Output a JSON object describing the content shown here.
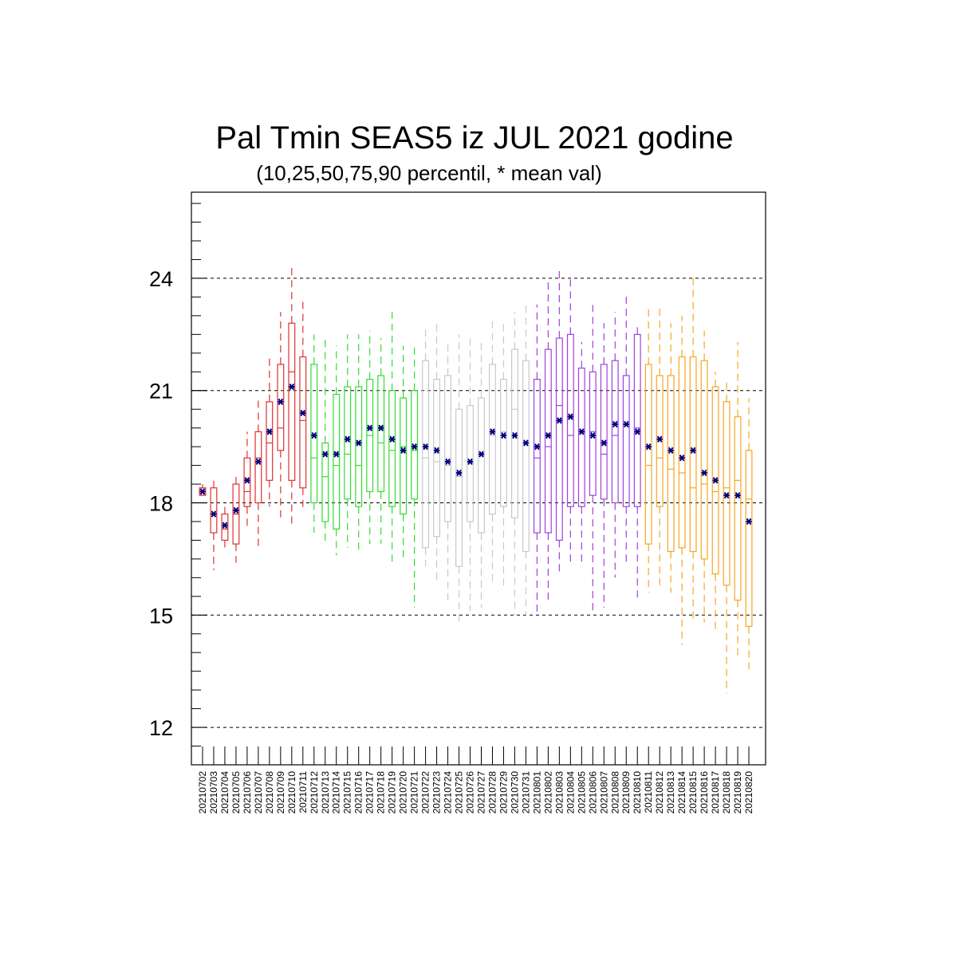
{
  "chart_data": {
    "type": "box",
    "title": "Pal Tmin SEAS5 iz JUL 2021 godine",
    "subtitle": "(10,25,50,75,90 percentil, * mean val)",
    "xlabel": "",
    "ylabel": "",
    "ylim": [
      11,
      26.3
    ],
    "yticks": [
      12,
      15,
      18,
      21,
      24
    ],
    "grid": "horizontal dashed at major y ticks",
    "mean_marker": "*",
    "colors": {
      "week1": "#e03030",
      "week2": "#33dd33",
      "week3": "#c8c8c8",
      "week4": "#a040e0",
      "week5": "#f5a623",
      "mean": "#000080"
    },
    "categories": [
      "20210702",
      "20210703",
      "20210704",
      "20210705",
      "20210706",
      "20210707",
      "20210708",
      "20210709",
      "20210710",
      "20210711",
      "20210712",
      "20210713",
      "20210714",
      "20210715",
      "20210716",
      "20210717",
      "20210718",
      "20210719",
      "20210720",
      "20210721",
      "20210722",
      "20210723",
      "20210724",
      "20210725",
      "20210726",
      "20210727",
      "20210728",
      "20210729",
      "20210730",
      "20210731",
      "20210801",
      "20210802",
      "20210803",
      "20210804",
      "20210805",
      "20210806",
      "20210807",
      "20210808",
      "20210809",
      "20210810",
      "20210811",
      "20210812",
      "20210813",
      "20210814",
      "20210815",
      "20210816",
      "20210817",
      "20210818",
      "20210819",
      "20210820"
    ],
    "groups": [
      "week1",
      "week1",
      "week1",
      "week1",
      "week1",
      "week1",
      "week1",
      "week1",
      "week1",
      "week1",
      "week2",
      "week2",
      "week2",
      "week2",
      "week2",
      "week2",
      "week2",
      "week2",
      "week2",
      "week2",
      "week3",
      "week3",
      "week3",
      "week3",
      "week3",
      "week3",
      "week3",
      "week3",
      "week3",
      "week3",
      "week4",
      "week4",
      "week4",
      "week4",
      "week4",
      "week4",
      "week4",
      "week4",
      "week4",
      "week4",
      "week5",
      "week5",
      "week5",
      "week5",
      "week5",
      "week5",
      "week5",
      "week5",
      "week5",
      "week5"
    ],
    "p10": [
      18.2,
      16.2,
      16.8,
      16.4,
      17.3,
      16.8,
      17.9,
      17.5,
      17.4,
      17.8,
      17.2,
      16.9,
      16.6,
      16.8,
      16.7,
      16.9,
      16.9,
      16.3,
      16.5,
      15.2,
      16.3,
      15.9,
      15.3,
      14.7,
      15.1,
      15.2,
      15.8,
      15.7,
      15.0,
      15.0,
      15.0,
      15.4,
      16.1,
      16.3,
      16.4,
      15.0,
      15.2,
      16.0,
      16.4,
      15.4,
      15.6,
      15.8,
      15.6,
      14.2,
      14.9,
      14.8,
      14.6,
      12.9,
      13.8,
      13.5
    ],
    "p25": [
      18.2,
      17.2,
      17.0,
      16.9,
      17.9,
      18.0,
      18.6,
      19.4,
      18.6,
      18.4,
      18.0,
      17.5,
      17.3,
      18.1,
      17.9,
      18.3,
      18.3,
      17.9,
      17.7,
      18.1,
      16.8,
      17.1,
      17.5,
      16.3,
      17.5,
      17.2,
      17.7,
      17.9,
      17.6,
      16.7,
      17.2,
      17.2,
      17.0,
      17.9,
      17.9,
      18.2,
      18.1,
      18.0,
      17.9,
      17.9,
      16.9,
      17.9,
      16.7,
      16.8,
      16.7,
      16.5,
      16.1,
      15.8,
      15.4,
      14.7
    ],
    "p50": [
      18.3,
      17.7,
      17.3,
      17.7,
      18.3,
      19.2,
      19.6,
      20.0,
      21.5,
      20.2,
      19.2,
      18.7,
      19.0,
      19.3,
      19.0,
      19.8,
      19.6,
      19.4,
      19.5,
      19.4,
      19.2,
      19.1,
      19.0,
      18.7,
      19.1,
      19.3,
      19.8,
      19.9,
      20.5,
      19.6,
      19.2,
      19.5,
      20.6,
      19.8,
      19.9,
      19.9,
      19.3,
      19.8,
      20.1,
      20.0,
      19.0,
      19.2,
      18.9,
      18.8,
      18.4,
      18.5,
      18.3,
      18.4,
      18.6,
      18.1
    ],
    "p75": [
      18.4,
      18.4,
      17.7,
      18.5,
      19.2,
      19.9,
      20.7,
      21.7,
      22.8,
      21.9,
      21.7,
      19.6,
      20.9,
      21.1,
      21.1,
      21.3,
      21.4,
      21.0,
      20.8,
      21.0,
      21.8,
      21.3,
      21.4,
      20.5,
      20.6,
      20.8,
      21.7,
      21.3,
      22.1,
      21.8,
      21.3,
      22.1,
      22.4,
      22.5,
      21.6,
      21.5,
      21.7,
      21.8,
      21.4,
      22.5,
      21.7,
      21.4,
      21.4,
      21.9,
      21.9,
      21.8,
      21.1,
      20.7,
      20.3,
      19.4
    ],
    "p90": [
      18.5,
      18.6,
      17.9,
      18.7,
      19.9,
      20.8,
      21.9,
      23.1,
      24.4,
      23.4,
      22.5,
      22.4,
      22.2,
      22.5,
      22.5,
      22.6,
      22.4,
      23.1,
      22.2,
      22.2,
      22.7,
      22.9,
      22.3,
      22.5,
      22.4,
      22.4,
      22.9,
      22.8,
      23.1,
      23.3,
      23.3,
      24.0,
      24.2,
      24.1,
      22.3,
      23.4,
      22.8,
      23.1,
      23.6,
      22.8,
      23.3,
      23.2,
      22.8,
      23.0,
      24.1,
      22.6,
      21.5,
      21.3,
      22.3,
      20.8
    ],
    "mean": [
      18.3,
      17.7,
      17.4,
      17.8,
      18.6,
      19.1,
      19.9,
      20.7,
      21.1,
      20.4,
      19.8,
      19.3,
      19.3,
      19.7,
      19.6,
      20.0,
      20.0,
      19.7,
      19.4,
      19.5,
      19.5,
      19.4,
      19.1,
      18.8,
      19.1,
      19.3,
      19.9,
      19.8,
      19.8,
      19.6,
      19.5,
      19.8,
      20.2,
      20.3,
      19.9,
      19.8,
      19.6,
      20.1,
      20.1,
      19.9,
      19.5,
      19.7,
      19.4,
      19.2,
      19.4,
      18.8,
      18.6,
      18.2,
      18.2,
      17.5
    ]
  }
}
